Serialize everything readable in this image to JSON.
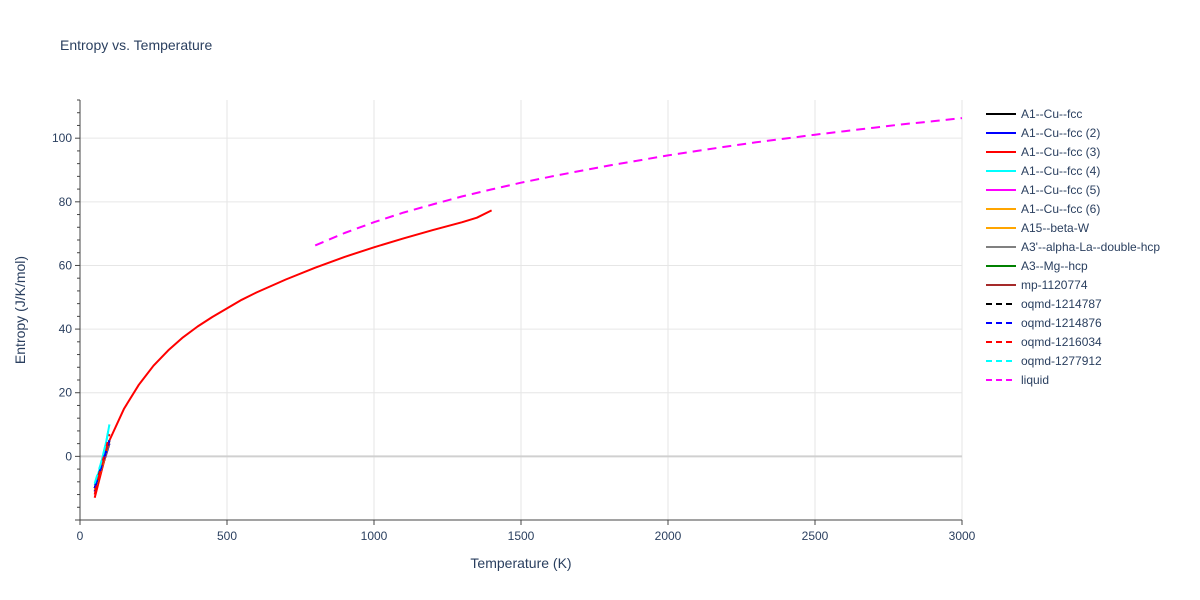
{
  "chart_data": {
    "type": "line",
    "title": "Entropy vs. Temperature",
    "xlabel": "Temperature (K)",
    "ylabel": "Entropy (J/K/mol)",
    "xlim": [
      0,
      3000
    ],
    "ylim": [
      -20,
      112
    ],
    "x_ticks": [
      0,
      500,
      1000,
      1500,
      2000,
      2500,
      3000
    ],
    "y_ticks": [
      0,
      20,
      40,
      60,
      80,
      100
    ],
    "grid": true,
    "legend_position": "right",
    "series": [
      {
        "name": "A1--Cu--fcc",
        "color": "#000000",
        "dash": "solid",
        "x": [
          50,
          60,
          70,
          80,
          90,
          100
        ],
        "y": [
          -11,
          -8,
          -5,
          -2,
          1,
          4
        ]
      },
      {
        "name": "A1--Cu--fcc (2)",
        "color": "#0000ff",
        "dash": "solid",
        "x": [
          50,
          60,
          70,
          80,
          90,
          100
        ],
        "y": [
          -11,
          -8,
          -5,
          -2,
          1,
          4
        ]
      },
      {
        "name": "A1--Cu--fcc (3)",
        "color": "#ff0000",
        "dash": "solid",
        "x": [
          50,
          75,
          100,
          150,
          200,
          250,
          300,
          350,
          400,
          450,
          500,
          550,
          600,
          700,
          800,
          900,
          1000,
          1100,
          1200,
          1300,
          1350,
          1400
        ],
        "y": [
          -13,
          -4,
          5,
          15,
          22.5,
          28.5,
          33.3,
          37.4,
          40.8,
          43.8,
          46.5,
          49.2,
          51.5,
          55.6,
          59.3,
          62.7,
          65.7,
          68.5,
          71.1,
          73.6,
          75,
          77.3
        ]
      },
      {
        "name": "A1--Cu--fcc (4)",
        "color": "#00ffff",
        "dash": "solid",
        "x": [
          50,
          60,
          70,
          80,
          90,
          100
        ],
        "y": [
          -9,
          -6,
          -3,
          1,
          5,
          10
        ]
      },
      {
        "name": "A1--Cu--fcc (5)",
        "color": "#ff00ff",
        "dash": "solid",
        "x": [
          50,
          60,
          70,
          80,
          90,
          100
        ],
        "y": [
          -10,
          -7,
          -4,
          -1,
          2,
          5
        ]
      },
      {
        "name": "A1--Cu--fcc (6)",
        "color": "#ffa500",
        "dash": "solid",
        "x": [
          50,
          60,
          70,
          80,
          90,
          100
        ],
        "y": [
          -10.5,
          -7.5,
          -4.5,
          -1.5,
          1.5,
          4.5
        ]
      },
      {
        "name": "A15--beta-W",
        "color": "#ffa500",
        "dash": "solid",
        "x": [
          50,
          60,
          70,
          80,
          90,
          100
        ],
        "y": [
          -10,
          -7,
          -4,
          -1,
          2,
          5
        ]
      },
      {
        "name": "A3'--alpha-La--double-hcp",
        "color": "#808080",
        "dash": "solid",
        "x": [
          50,
          60,
          70,
          80,
          90,
          100
        ],
        "y": [
          -10,
          -7,
          -4,
          -1,
          2,
          5
        ]
      },
      {
        "name": "A3--Mg--hcp",
        "color": "#008000",
        "dash": "solid",
        "x": [
          50,
          60,
          70,
          80,
          90,
          100
        ],
        "y": [
          -10,
          -7,
          -4,
          -1,
          2,
          5
        ]
      },
      {
        "name": "mp-1120774",
        "color": "#a52a2a",
        "dash": "solid",
        "x": [
          50,
          60,
          70,
          80,
          90,
          100
        ],
        "y": [
          -10,
          -7,
          -4,
          -1,
          2,
          5
        ]
      },
      {
        "name": "oqmd-1214787",
        "color": "#000000",
        "dash": "dash",
        "x": [
          50,
          60,
          70,
          80,
          90,
          100
        ],
        "y": [
          -10,
          -7,
          -4,
          -1,
          2,
          5
        ]
      },
      {
        "name": "oqmd-1214876",
        "color": "#0000ff",
        "dash": "dash",
        "x": [
          50,
          60,
          70,
          80,
          90,
          100
        ],
        "y": [
          -10,
          -7,
          -4,
          -1,
          2,
          5
        ]
      },
      {
        "name": "oqmd-1216034",
        "color": "#ff0000",
        "dash": "dash",
        "x": [
          50,
          60,
          70,
          80,
          90,
          100
        ],
        "y": [
          -12,
          -8,
          -4,
          -0.5,
          3,
          7
        ]
      },
      {
        "name": "oqmd-1277912",
        "color": "#00ffff",
        "dash": "dash",
        "x": [
          50,
          60,
          70,
          80,
          90,
          100
        ],
        "y": [
          -8.5,
          -5.5,
          -2.5,
          1,
          5,
          10
        ]
      },
      {
        "name": "liquid",
        "color": "#ff00ff",
        "dash": "dash",
        "x": [
          800,
          900,
          1000,
          1100,
          1200,
          1300,
          1400,
          1500,
          1600,
          1700,
          1800,
          1900,
          2000,
          2100,
          2200,
          2300,
          2400,
          2500,
          2600,
          2700,
          2800,
          2900,
          3000
        ],
        "y": [
          66.3,
          70.2,
          73.6,
          76.6,
          79.2,
          81.7,
          83.9,
          86,
          87.9,
          89.7,
          91.4,
          93,
          94.6,
          96,
          97.4,
          98.7,
          99.9,
          101.1,
          102.2,
          103.3,
          104.4,
          105.3,
          106.3
        ]
      }
    ]
  }
}
